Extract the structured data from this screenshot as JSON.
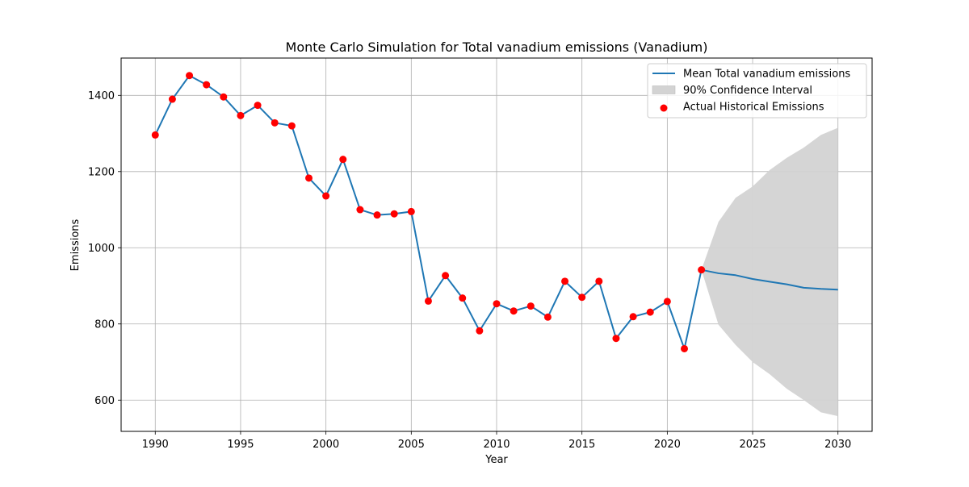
{
  "chart_data": {
    "type": "line",
    "title": "Monte Carlo Simulation for Total vanadium emissions (Vanadium)",
    "xlabel": "Year",
    "ylabel": "Emissions",
    "xlim": [
      1988,
      2032
    ],
    "ylim": [
      518,
      1498
    ],
    "xticks": [
      1990,
      1995,
      2000,
      2005,
      2010,
      2015,
      2020,
      2025,
      2030
    ],
    "yticks": [
      600,
      800,
      1000,
      1200,
      1400
    ],
    "grid": true,
    "legend_position": "top-right",
    "legend": [
      {
        "label": "Mean Total vanadium emissions",
        "kind": "line",
        "color": "#1f77b4"
      },
      {
        "label": "90% Confidence Interval",
        "kind": "band",
        "color": "#d3d3d3"
      },
      {
        "label": "Actual Historical Emissions",
        "kind": "marker",
        "color": "#ff0000"
      }
    ],
    "series": [
      {
        "name": "Mean Total vanadium emissions",
        "color": "#1f77b4",
        "x": [
          1990,
          1991,
          1992,
          1993,
          1994,
          1995,
          1996,
          1997,
          1998,
          1999,
          2000,
          2001,
          2002,
          2003,
          2004,
          2005,
          2006,
          2007,
          2008,
          2009,
          2010,
          2011,
          2012,
          2013,
          2014,
          2015,
          2016,
          2017,
          2018,
          2019,
          2020,
          2021,
          2022,
          2023,
          2024,
          2025,
          2026,
          2027,
          2028,
          2029,
          2030
        ],
        "y": [
          1296,
          1390,
          1452,
          1428,
          1396,
          1347,
          1374,
          1328,
          1320,
          1183,
          1136,
          1232,
          1100,
          1086,
          1089,
          1095,
          860,
          927,
          868,
          782,
          853,
          834,
          847,
          818,
          912,
          870,
          912,
          762,
          819,
          831,
          859,
          735,
          942,
          933,
          928,
          918,
          911,
          904,
          895,
          892,
          890
        ]
      },
      {
        "name": "90% Confidence Interval",
        "color": "#d3d3d3",
        "x": [
          2022,
          2023,
          2024,
          2025,
          2026,
          2027,
          2028,
          2029,
          2030
        ],
        "lower": [
          942,
          798,
          745,
          700,
          668,
          630,
          600,
          568,
          558
        ],
        "upper": [
          942,
          1068,
          1131,
          1161,
          1204,
          1236,
          1263,
          1296,
          1315
        ]
      },
      {
        "name": "Actual Historical Emissions",
        "color": "#ff0000",
        "x": [
          1990,
          1991,
          1992,
          1993,
          1994,
          1995,
          1996,
          1997,
          1998,
          1999,
          2000,
          2001,
          2002,
          2003,
          2004,
          2005,
          2006,
          2007,
          2008,
          2009,
          2010,
          2011,
          2012,
          2013,
          2014,
          2015,
          2016,
          2017,
          2018,
          2019,
          2020,
          2021,
          2022
        ],
        "y": [
          1296,
          1390,
          1452,
          1428,
          1396,
          1347,
          1374,
          1328,
          1320,
          1183,
          1136,
          1232,
          1100,
          1086,
          1089,
          1095,
          860,
          927,
          868,
          782,
          853,
          834,
          847,
          818,
          912,
          870,
          912,
          762,
          819,
          831,
          859,
          735,
          942
        ]
      }
    ]
  }
}
